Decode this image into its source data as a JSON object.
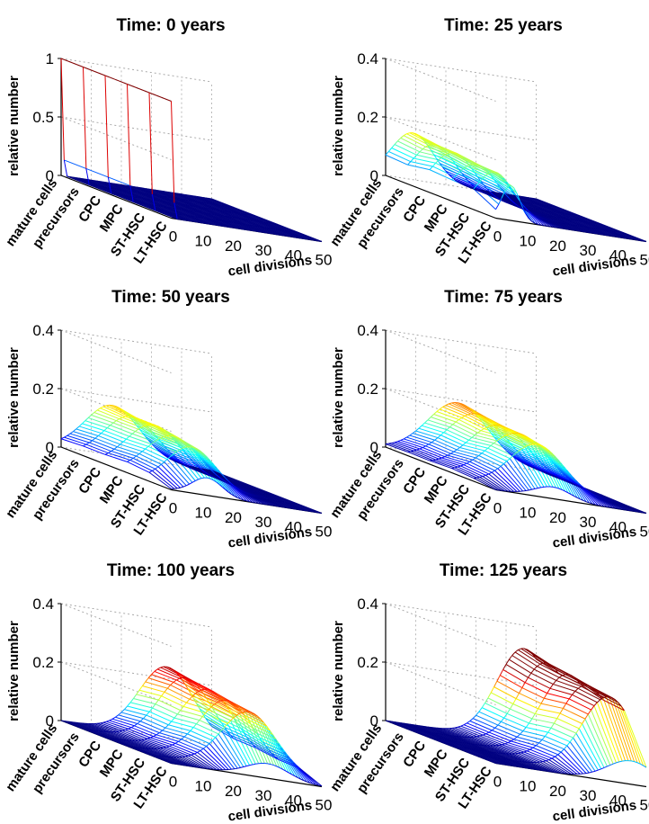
{
  "figure": {
    "panels": [
      {
        "title": "Time: 0 years"
      },
      {
        "title": "Time: 25 years"
      },
      {
        "title": "Time: 50 years"
      },
      {
        "title": "Time: 75 years"
      },
      {
        "title": "Time: 100 years"
      },
      {
        "title": "Time: 125 years"
      }
    ]
  },
  "chart_data": [
    {
      "type": "surface-3d",
      "title": "Time: 0 years",
      "xlabel": "cell divisions",
      "ylabel": "",
      "zlabel": "relative number",
      "categories": [
        "mature cells",
        "precursors",
        "CPC",
        "MPC",
        "ST-HSC",
        "LT-HSC"
      ],
      "x_ticks": [
        0,
        10,
        20,
        30,
        40,
        50
      ],
      "z_ticks": [
        0,
        0.5,
        1
      ],
      "zlim": [
        0,
        1
      ],
      "xlim": [
        0,
        50
      ],
      "series": [
        {
          "category": "mature cells",
          "peak_division": 0,
          "peak_value": 1.0,
          "spread": 0.5
        },
        {
          "category": "precursors",
          "peak_division": 0,
          "peak_value": 1.0,
          "spread": 0.5
        },
        {
          "category": "CPC",
          "peak_division": 0,
          "peak_value": 1.0,
          "spread": 0.5
        },
        {
          "category": "MPC",
          "peak_division": 0,
          "peak_value": 1.0,
          "spread": 0.5
        },
        {
          "category": "ST-HSC",
          "peak_division": 0,
          "peak_value": 1.0,
          "spread": 0.5
        },
        {
          "category": "LT-HSC",
          "peak_division": 0,
          "peak_value": 1.0,
          "spread": 0.5
        }
      ]
    },
    {
      "type": "surface-3d",
      "title": "Time: 25 years",
      "xlabel": "cell divisions",
      "ylabel": "",
      "zlabel": "relative number",
      "categories": [
        "mature cells",
        "precursors",
        "CPC",
        "MPC",
        "ST-HSC",
        "LT-HSC"
      ],
      "x_ticks": [
        0,
        10,
        20,
        30,
        40,
        50
      ],
      "z_ticks": [
        0,
        0.2,
        0.4
      ],
      "zlim": [
        0,
        0.4
      ],
      "xlim": [
        0,
        50
      ],
      "series": [
        {
          "category": "mature cells",
          "peak_division": 9,
          "peak_value": 0.16,
          "spread": 7
        },
        {
          "category": "precursors",
          "peak_division": 9,
          "peak_value": 0.15,
          "spread": 7
        },
        {
          "category": "CPC",
          "peak_division": 8,
          "peak_value": 0.15,
          "spread": 7
        },
        {
          "category": "MPC",
          "peak_division": 8,
          "peak_value": 0.14,
          "spread": 7
        },
        {
          "category": "ST-HSC",
          "peak_division": 7,
          "peak_value": 0.14,
          "spread": 6
        },
        {
          "category": "LT-HSC",
          "peak_division": 5,
          "peak_value": 0.12,
          "spread": 3
        }
      ]
    },
    {
      "type": "surface-3d",
      "title": "Time: 50 years",
      "xlabel": "cell divisions",
      "ylabel": "",
      "zlabel": "relative number",
      "categories": [
        "mature cells",
        "precursors",
        "CPC",
        "MPC",
        "ST-HSC",
        "LT-HSC"
      ],
      "x_ticks": [
        0,
        10,
        20,
        30,
        40,
        50
      ],
      "z_ticks": [
        0,
        0.2,
        0.4
      ],
      "zlim": [
        0,
        0.4
      ],
      "xlim": [
        0,
        50
      ],
      "series": [
        {
          "category": "mature cells",
          "peak_division": 17,
          "peak_value": 0.17,
          "spread": 9
        },
        {
          "category": "precursors",
          "peak_division": 16,
          "peak_value": 0.16,
          "spread": 9
        },
        {
          "category": "CPC",
          "peak_division": 16,
          "peak_value": 0.16,
          "spread": 9
        },
        {
          "category": "MPC",
          "peak_division": 15,
          "peak_value": 0.15,
          "spread": 9
        },
        {
          "category": "ST-HSC",
          "peak_division": 14,
          "peak_value": 0.14,
          "spread": 8
        },
        {
          "category": "LT-HSC",
          "peak_division": 12,
          "peak_value": 0.06,
          "spread": 5
        }
      ]
    },
    {
      "type": "surface-3d",
      "title": "Time: 75 years",
      "xlabel": "cell divisions",
      "ylabel": "",
      "zlabel": "relative number",
      "categories": [
        "mature cells",
        "precursors",
        "CPC",
        "MPC",
        "ST-HSC",
        "LT-HSC"
      ],
      "x_ticks": [
        0,
        10,
        20,
        30,
        40,
        50
      ],
      "z_ticks": [
        0,
        0.2,
        0.4
      ],
      "zlim": [
        0,
        0.4
      ],
      "xlim": [
        0,
        50
      ],
      "series": [
        {
          "category": "mature cells",
          "peak_division": 24,
          "peak_value": 0.19,
          "spread": 10
        },
        {
          "category": "precursors",
          "peak_division": 23,
          "peak_value": 0.18,
          "spread": 10
        },
        {
          "category": "CPC",
          "peak_division": 23,
          "peak_value": 0.17,
          "spread": 10
        },
        {
          "category": "MPC",
          "peak_division": 22,
          "peak_value": 0.17,
          "spread": 10
        },
        {
          "category": "ST-HSC",
          "peak_division": 21,
          "peak_value": 0.16,
          "spread": 9
        },
        {
          "category": "LT-HSC",
          "peak_division": 19,
          "peak_value": 0.04,
          "spread": 6
        }
      ]
    },
    {
      "type": "surface-3d",
      "title": "Time: 100 years",
      "xlabel": "cell divisions",
      "ylabel": "",
      "zlabel": "relative number",
      "categories": [
        "mature cells",
        "precursors",
        "CPC",
        "MPC",
        "ST-HSC",
        "LT-HSC"
      ],
      "x_ticks": [
        0,
        10,
        20,
        30,
        40,
        50
      ],
      "z_ticks": [
        0,
        0.2,
        0.4
      ],
      "zlim": [
        0,
        0.4
      ],
      "xlim": [
        0,
        50
      ],
      "series": [
        {
          "category": "mature cells",
          "peak_division": 35,
          "peak_value": 0.24,
          "spread": 9
        },
        {
          "category": "precursors",
          "peak_division": 34,
          "peak_value": 0.23,
          "spread": 9
        },
        {
          "category": "CPC",
          "peak_division": 34,
          "peak_value": 0.22,
          "spread": 9
        },
        {
          "category": "MPC",
          "peak_division": 33,
          "peak_value": 0.21,
          "spread": 9
        },
        {
          "category": "ST-HSC",
          "peak_division": 33,
          "peak_value": 0.2,
          "spread": 9
        },
        {
          "category": "LT-HSC",
          "peak_division": 32,
          "peak_value": 0.05,
          "spread": 7
        }
      ]
    },
    {
      "type": "surface-3d",
      "title": "Time: 125 years",
      "xlabel": "cell divisions",
      "ylabel": "",
      "zlabel": "relative number",
      "categories": [
        "mature cells",
        "precursors",
        "CPC",
        "MPC",
        "ST-HSC",
        "LT-HSC"
      ],
      "x_ticks": [
        0,
        10,
        20,
        30,
        40,
        50
      ],
      "z_ticks": [
        0,
        0.2,
        0.4
      ],
      "zlim": [
        0,
        0.4
      ],
      "xlim": [
        0,
        50
      ],
      "series": [
        {
          "category": "mature cells",
          "peak_division": 46,
          "peak_value": 0.32,
          "spread": 9
        },
        {
          "category": "precursors",
          "peak_division": 46,
          "peak_value": 0.3,
          "spread": 9
        },
        {
          "category": "CPC",
          "peak_division": 46,
          "peak_value": 0.29,
          "spread": 9
        },
        {
          "category": "MPC",
          "peak_division": 45,
          "peak_value": 0.28,
          "spread": 9
        },
        {
          "category": "ST-HSC",
          "peak_division": 45,
          "peak_value": 0.27,
          "spread": 9
        },
        {
          "category": "LT-HSC",
          "peak_division": 45,
          "peak_value": 0.08,
          "spread": 8
        }
      ]
    }
  ]
}
